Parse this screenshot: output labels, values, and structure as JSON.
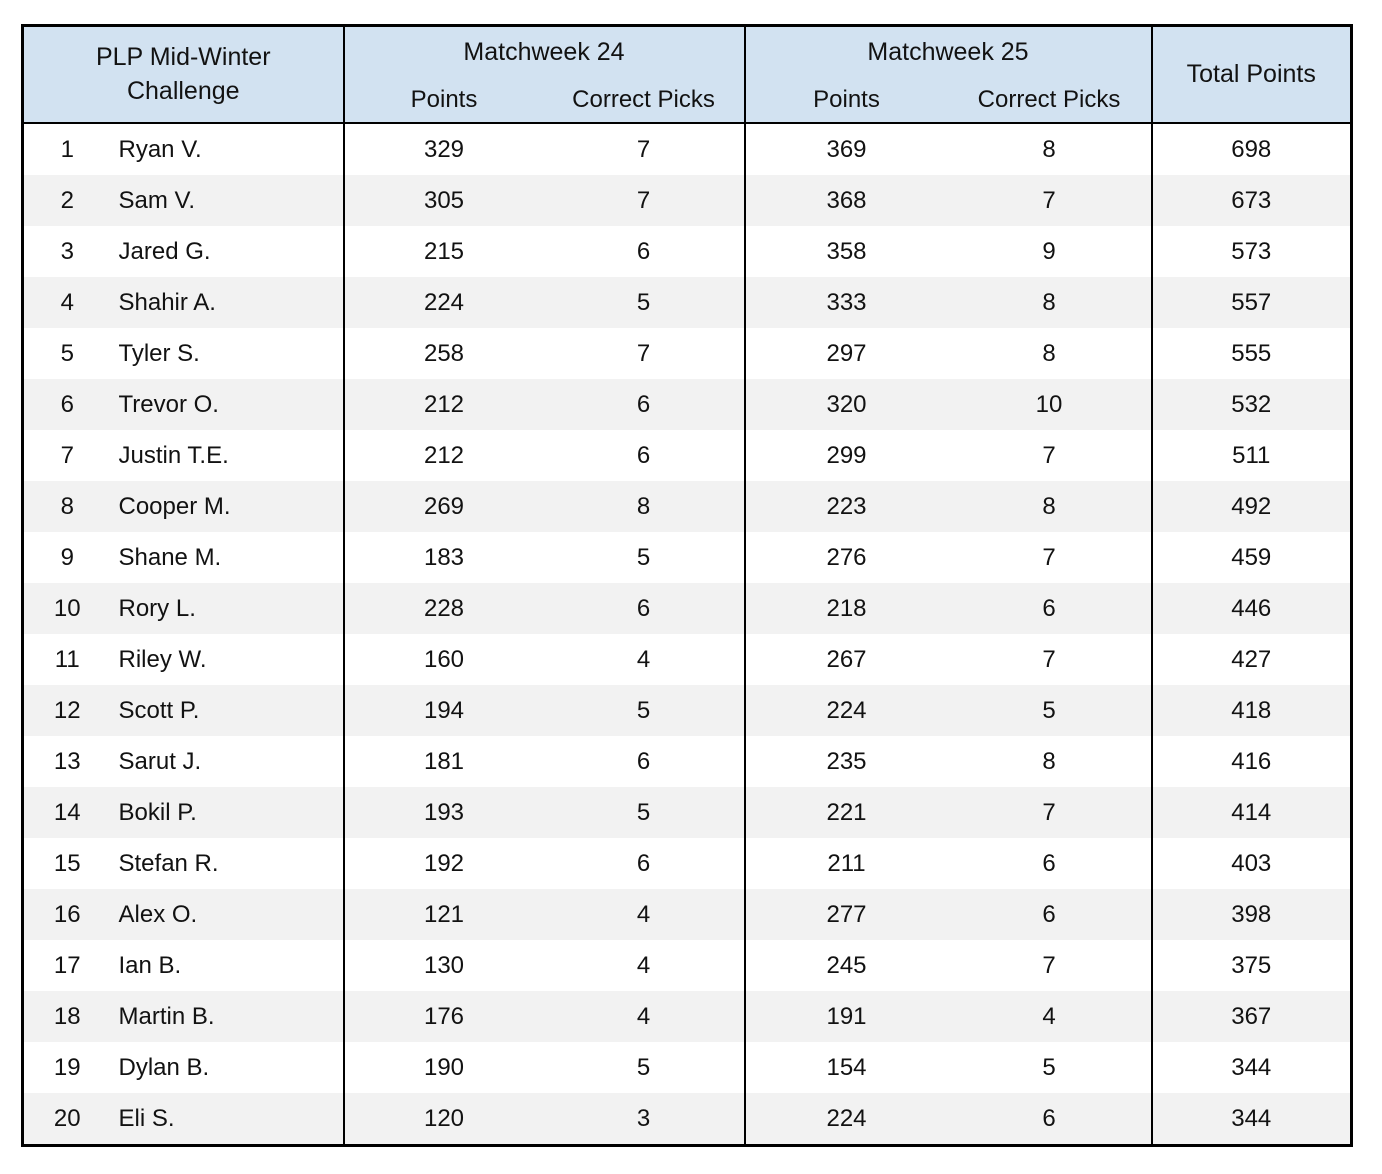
{
  "page": {
    "background": "#ffffff"
  },
  "table": {
    "title": "PLP Mid-Winter\nChallenge",
    "header": {
      "group1": "Matchweek 24",
      "group2": "Matchweek 25",
      "points_label": "Points",
      "correct_picks_label": "Correct Picks",
      "total_label": "Total Points"
    },
    "colors": {
      "header_bg": "#d2e2f1",
      "stripe_bg": "#f2f2f2",
      "border": "#000000",
      "text": "#121212"
    },
    "rows": [
      {
        "rank": 1,
        "name": "Ryan V.",
        "mw24_points": 329,
        "mw24_picks": 7,
        "mw25_points": 369,
        "mw25_picks": 8,
        "total": 698
      },
      {
        "rank": 2,
        "name": "Sam V.",
        "mw24_points": 305,
        "mw24_picks": 7,
        "mw25_points": 368,
        "mw25_picks": 7,
        "total": 673
      },
      {
        "rank": 3,
        "name": "Jared G.",
        "mw24_points": 215,
        "mw24_picks": 6,
        "mw25_points": 358,
        "mw25_picks": 9,
        "total": 573
      },
      {
        "rank": 4,
        "name": "Shahir A.",
        "mw24_points": 224,
        "mw24_picks": 5,
        "mw25_points": 333,
        "mw25_picks": 8,
        "total": 557
      },
      {
        "rank": 5,
        "name": "Tyler S.",
        "mw24_points": 258,
        "mw24_picks": 7,
        "mw25_points": 297,
        "mw25_picks": 8,
        "total": 555
      },
      {
        "rank": 6,
        "name": "Trevor O.",
        "mw24_points": 212,
        "mw24_picks": 6,
        "mw25_points": 320,
        "mw25_picks": 10,
        "total": 532
      },
      {
        "rank": 7,
        "name": "Justin T.E.",
        "mw24_points": 212,
        "mw24_picks": 6,
        "mw25_points": 299,
        "mw25_picks": 7,
        "total": 511
      },
      {
        "rank": 8,
        "name": "Cooper M.",
        "mw24_points": 269,
        "mw24_picks": 8,
        "mw25_points": 223,
        "mw25_picks": 8,
        "total": 492
      },
      {
        "rank": 9,
        "name": "Shane M.",
        "mw24_points": 183,
        "mw24_picks": 5,
        "mw25_points": 276,
        "mw25_picks": 7,
        "total": 459
      },
      {
        "rank": 10,
        "name": "Rory L.",
        "mw24_points": 228,
        "mw24_picks": 6,
        "mw25_points": 218,
        "mw25_picks": 6,
        "total": 446
      },
      {
        "rank": 11,
        "name": "Riley W.",
        "mw24_points": 160,
        "mw24_picks": 4,
        "mw25_points": 267,
        "mw25_picks": 7,
        "total": 427
      },
      {
        "rank": 12,
        "name": "Scott P.",
        "mw24_points": 194,
        "mw24_picks": 5,
        "mw25_points": 224,
        "mw25_picks": 5,
        "total": 418
      },
      {
        "rank": 13,
        "name": "Sarut J.",
        "mw24_points": 181,
        "mw24_picks": 6,
        "mw25_points": 235,
        "mw25_picks": 8,
        "total": 416
      },
      {
        "rank": 14,
        "name": "Bokil P.",
        "mw24_points": 193,
        "mw24_picks": 5,
        "mw25_points": 221,
        "mw25_picks": 7,
        "total": 414
      },
      {
        "rank": 15,
        "name": "Stefan R.",
        "mw24_points": 192,
        "mw24_picks": 6,
        "mw25_points": 211,
        "mw25_picks": 6,
        "total": 403
      },
      {
        "rank": 16,
        "name": "Alex O.",
        "mw24_points": 121,
        "mw24_picks": 4,
        "mw25_points": 277,
        "mw25_picks": 6,
        "total": 398
      },
      {
        "rank": 17,
        "name": "Ian B.",
        "mw24_points": 130,
        "mw24_picks": 4,
        "mw25_points": 245,
        "mw25_picks": 7,
        "total": 375
      },
      {
        "rank": 18,
        "name": "Martin B.",
        "mw24_points": 176,
        "mw24_picks": 4,
        "mw25_points": 191,
        "mw25_picks": 4,
        "total": 367
      },
      {
        "rank": 19,
        "name": "Dylan B.",
        "mw24_points": 190,
        "mw24_picks": 5,
        "mw25_points": 154,
        "mw25_picks": 5,
        "total": 344
      },
      {
        "rank": 20,
        "name": "Eli S.",
        "mw24_points": 120,
        "mw24_picks": 3,
        "mw25_points": 224,
        "mw25_picks": 6,
        "total": 344
      }
    ]
  }
}
